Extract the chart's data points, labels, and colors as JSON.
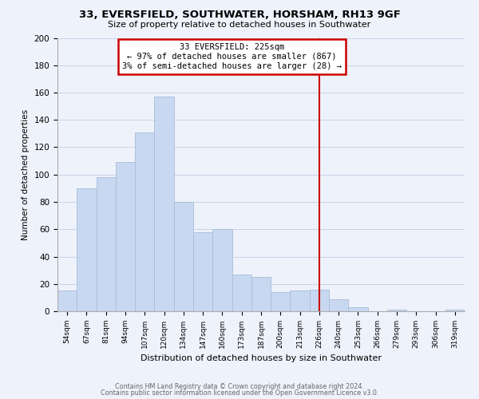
{
  "title": "33, EVERSFIELD, SOUTHWATER, HORSHAM, RH13 9GF",
  "subtitle": "Size of property relative to detached houses in Southwater",
  "xlabel": "Distribution of detached houses by size in Southwater",
  "ylabel": "Number of detached properties",
  "bar_labels": [
    "54sqm",
    "67sqm",
    "81sqm",
    "94sqm",
    "107sqm",
    "120sqm",
    "134sqm",
    "147sqm",
    "160sqm",
    "173sqm",
    "187sqm",
    "200sqm",
    "213sqm",
    "226sqm",
    "240sqm",
    "253sqm",
    "266sqm",
    "279sqm",
    "293sqm",
    "306sqm",
    "319sqm"
  ],
  "bar_values": [
    15,
    90,
    98,
    109,
    131,
    157,
    80,
    58,
    60,
    27,
    25,
    14,
    15,
    16,
    9,
    3,
    0,
    1,
    0,
    0,
    1
  ],
  "bar_color": "#c8d8f0",
  "bar_edge_color": "#a8bcd8",
  "grid_color": "#c8d4e8",
  "vline_x": 13,
  "vline_color": "#cc0000",
  "annotation_title": "33 EVERSFIELD: 225sqm",
  "annotation_line1": "← 97% of detached houses are smaller (867)",
  "annotation_line2": "3% of semi-detached houses are larger (28) →",
  "annotation_box_edge": "#cc0000",
  "ylim": [
    0,
    200
  ],
  "yticks": [
    0,
    20,
    40,
    60,
    80,
    100,
    120,
    140,
    160,
    180,
    200
  ],
  "footer1": "Contains HM Land Registry data © Crown copyright and database right 2024.",
  "footer2": "Contains public sector information licensed under the Open Government Licence v3.0.",
  "background_color": "#eef2fb"
}
